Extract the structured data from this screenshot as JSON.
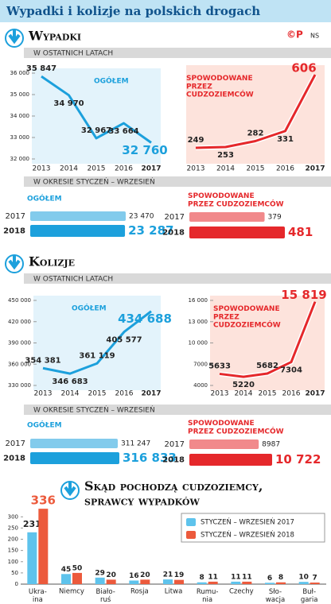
{
  "header": {
    "title": "Wypadki i kolizje na polskich drogach",
    "logo": "©P",
    "author": "NS"
  },
  "sections": [
    {
      "heading": "Wypadki",
      "sub1": "W OSTATNICH LATACH",
      "sub2": "W OKRESIE STYCZEŃ – WRZESIEŃ"
    },
    {
      "heading": "Kolizje",
      "sub1": "W OSTATNICH LATACH",
      "sub2": "W OKRESIE STYCZEŃ – WRZESIEŃ"
    },
    {
      "heading": "Skąd pochodzą cudzoziemcy,\nsprawcy wypadków"
    }
  ],
  "chart_data": [
    {
      "type": "line",
      "title": "OGÓŁEM",
      "color": "#1ca0dc",
      "categories": [
        "2013",
        "2014",
        "2015",
        "2016",
        "2017"
      ],
      "values": [
        35847,
        34970,
        32967,
        33664,
        32760
      ],
      "value_labels": [
        "35 847",
        "34 970",
        "32 967",
        "33 664",
        "32 760"
      ],
      "ylim": [
        32000,
        36000
      ],
      "yticks": [
        {
          "value": 32000,
          "label": "32 000"
        },
        {
          "value": 33000,
          "label": "33 000"
        },
        {
          "value": 34000,
          "label": "34 000"
        },
        {
          "value": 35000,
          "label": "35 000"
        },
        {
          "value": 36000,
          "label": "36 000"
        }
      ]
    },
    {
      "type": "line",
      "title": "SPOWODOWANE\nPRZEZ\nCUDZOZIEMCÓW",
      "color": "#e5282b",
      "categories": [
        "2013",
        "2014",
        "2015",
        "2016",
        "2017"
      ],
      "values": [
        249,
        253,
        282,
        331,
        606
      ]
    },
    {
      "type": "hbar",
      "title": "OGÓŁEM",
      "color": "#1ca0dc",
      "categories": [
        "2017",
        "2018"
      ],
      "values": [
        23470,
        23287
      ],
      "value_labels": [
        "23 470",
        "23 287"
      ]
    },
    {
      "type": "hbar",
      "title": "SPOWODOWANE\nPRZEZ CUDZOZIEMCÓW",
      "color": "#e5282b",
      "categories": [
        "2017",
        "2018"
      ],
      "values": [
        379,
        481
      ]
    },
    {
      "type": "line",
      "title": "OGÓŁEM",
      "color": "#1ca0dc",
      "categories": [
        "2013",
        "2014",
        "2015",
        "2016",
        "2017"
      ],
      "values": [
        354381,
        346683,
        361119,
        405577,
        434688
      ],
      "value_labels": [
        "354 381",
        "346 683",
        "361 119",
        "405 577",
        "434 688"
      ],
      "ylim": [
        330000,
        450000
      ],
      "yticks": [
        {
          "value": 330000,
          "label": "330 000"
        },
        {
          "value": 360000,
          "label": "360 000"
        },
        {
          "value": 390000,
          "label": "390 000"
        },
        {
          "value": 420000,
          "label": "420 000"
        },
        {
          "value": 450000,
          "label": "450 000"
        }
      ]
    },
    {
      "type": "line",
      "title": "SPOWODOWANE\nPRZEZ\nCUDZOZIEMCÓW",
      "color": "#e5282b",
      "categories": [
        "2013",
        "2014",
        "2015",
        "2016",
        "2017"
      ],
      "values": [
        5633,
        5220,
        5682,
        7304,
        15819
      ],
      "value_labels": [
        "5633",
        "5220",
        "5682",
        "7304",
        "15 819"
      ],
      "ylim": [
        4000,
        16000
      ],
      "yticks": [
        4000,
        7000,
        {
          "value": 10000,
          "label": "10 000"
        },
        {
          "value": 13000,
          "label": "13 000"
        },
        {
          "value": 16000,
          "label": "16 000"
        }
      ]
    },
    {
      "type": "hbar",
      "title": "OGÓŁEM",
      "color": "#1ca0dc",
      "categories": [
        "2017",
        "2018"
      ],
      "values": [
        311247,
        316833
      ],
      "value_labels": [
        "311 247",
        "316 833"
      ]
    },
    {
      "type": "hbar",
      "title": "SPOWODOWANE\nPRZEZ CUDZOZIEMCÓW",
      "color": "#e5282b",
      "categories": [
        "2017",
        "2018"
      ],
      "values": [
        8987,
        10722
      ],
      "value_labels": [
        "8987",
        "10 722"
      ]
    },
    {
      "type": "grouped_bar",
      "categories": [
        "Ukra-\nina",
        "Niemcy",
        "Biało-\nruś",
        "Rosja",
        "Litwa",
        "Rumu-\nnia",
        "Czechy",
        "Sło-\nwacja",
        "Buł-\ngaria"
      ],
      "series": [
        {
          "name": "STYCZEŃ – WRZESIEŃ 2017",
          "color": "#5ec3ec",
          "values": [
            231,
            45,
            29,
            16,
            21,
            8,
            11,
            6,
            10
          ]
        },
        {
          "name": "STYCZEŃ – WRZESIEŃ 2018",
          "color": "#ec5a3c",
          "values": [
            336,
            50,
            20,
            20,
            19,
            11,
            11,
            8,
            7
          ]
        }
      ],
      "ylim": [
        0,
        340
      ],
      "yticks": [
        0,
        50,
        100,
        150,
        200,
        250,
        300
      ]
    }
  ]
}
